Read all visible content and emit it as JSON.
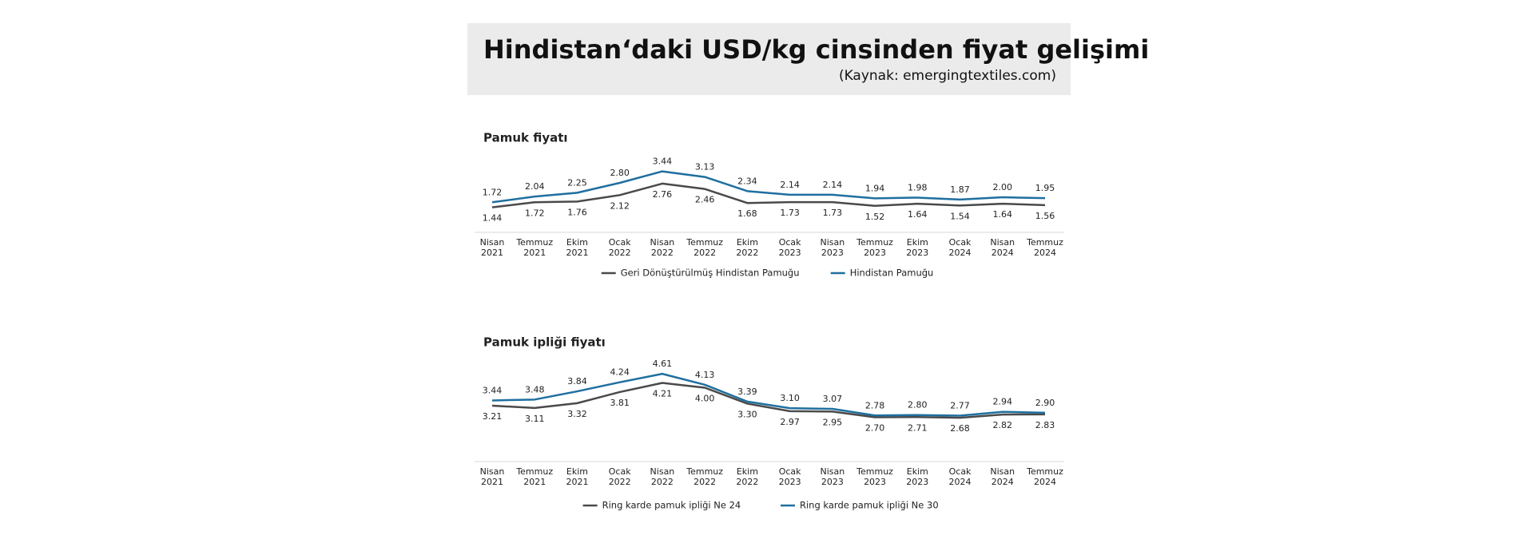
{
  "header": {
    "title": "Hindistan‘daki USD/kg cinsinden fiyat gelişimi",
    "source": "(Kaynak: emergingtextiles.com)"
  },
  "chart_data": [
    {
      "type": "line",
      "title": "Pamuk fiyatı",
      "categories": [
        "Nisan 2021",
        "Temmuz 2021",
        "Ekim 2021",
        "Ocak 2022",
        "Nisan 2022",
        "Temmuz 2022",
        "Ekim 2022",
        "Ocak 2023",
        "Nisan 2023",
        "Temmuz 2023",
        "Ekim 2023",
        "Ocak 2024",
        "Nisan 2024",
        "Temmuz 2024"
      ],
      "ylim": [
        0,
        4
      ],
      "series": [
        {
          "name": "Geri Dönüştürülmüş Hindistan Pamuğu",
          "color": "#4a4a4a",
          "values": [
            1.44,
            1.72,
            1.76,
            2.12,
            2.76,
            2.46,
            1.68,
            1.73,
            1.73,
            1.52,
            1.64,
            1.54,
            1.64,
            1.56
          ],
          "value_labels": [
            "1.44",
            "1.72",
            "1.76",
            "2.12",
            "2.76",
            "2.46",
            "1.68",
            "1.73",
            "1.73",
            "1.52",
            "1.64",
            "1.54",
            "1.64",
            "1.56"
          ]
        },
        {
          "name": "Hindistan Pamuğu",
          "color": "#1f6f9f",
          "values": [
            1.72,
            2.04,
            2.25,
            2.8,
            3.44,
            3.13,
            2.34,
            2.14,
            2.14,
            1.94,
            1.98,
            1.87,
            2.0,
            1.95
          ],
          "value_labels": [
            "1.72",
            "2.04",
            "2.25",
            "2.80",
            "3.44",
            "3.13",
            "2.34",
            "2.14",
            "2.14",
            "1.94",
            "1.98",
            "1.87",
            "2.00",
            "1.95"
          ]
        }
      ]
    },
    {
      "type": "line",
      "title": "Pamuk ipliği fiyatı",
      "categories": [
        "Nisan 2021",
        "Temmuz 2021",
        "Ekim 2021",
        "Ocak 2022",
        "Nisan 2022",
        "Temmuz 2022",
        "Ekim 2022",
        "Ocak 2023",
        "Nisan 2023",
        "Temmuz 2023",
        "Ekim 2023",
        "Ocak 2024",
        "Nisan 2024",
        "Temmuz 2024"
      ],
      "ylim": [
        1,
        5
      ],
      "series": [
        {
          "name": "Ring karde pamuk ipliği Ne 24",
          "color": "#4a4a4a",
          "values": [
            3.21,
            3.11,
            3.32,
            3.81,
            4.21,
            4.0,
            3.3,
            2.97,
            2.95,
            2.7,
            2.71,
            2.68,
            2.82,
            2.83
          ],
          "value_labels": [
            "3.21",
            "3.11",
            "3.32",
            "3.81",
            "4.21",
            "4.00",
            "3.30",
            "2.97",
            "2.95",
            "2.70",
            "2.71",
            "2.68",
            "2.82",
            "2.83"
          ]
        },
        {
          "name": "Ring karde pamuk ipliği Ne 30",
          "color": "#1f6f9f",
          "values": [
            3.44,
            3.48,
            3.84,
            4.24,
            4.61,
            4.13,
            3.39,
            3.1,
            3.07,
            2.78,
            2.8,
            2.77,
            2.94,
            2.9
          ],
          "value_labels": [
            "3.44",
            "3.48",
            "3.84",
            "4.24",
            "4.61",
            "4.13",
            "3.39",
            "3.10",
            "3.07",
            "2.78",
            "2.80",
            "2.77",
            "2.94",
            "2.90"
          ]
        }
      ]
    }
  ]
}
